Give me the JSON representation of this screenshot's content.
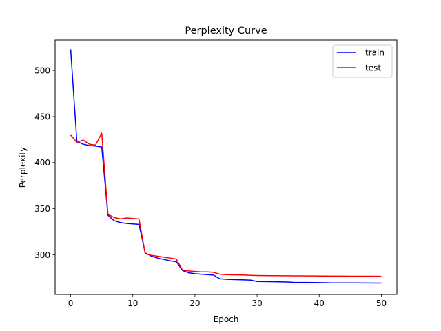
{
  "chart_data": {
    "type": "line",
    "title": "Perplexity Curve",
    "xlabel": "Epoch",
    "ylabel": "Perplexity",
    "xlim": [
      -2.5,
      52.5
    ],
    "ylim": [
      257,
      533
    ],
    "xticks": [
      0,
      10,
      20,
      30,
      40,
      50
    ],
    "yticks": [
      300,
      350,
      400,
      450,
      500
    ],
    "grid": false,
    "legend_position": "top-right",
    "x": [
      0,
      1,
      2,
      3,
      4,
      5,
      6,
      7,
      8,
      9,
      10,
      11,
      12,
      13,
      14,
      15,
      16,
      17,
      18,
      19,
      20,
      21,
      22,
      23,
      24,
      25,
      26,
      27,
      28,
      29,
      30,
      31,
      32,
      33,
      34,
      35,
      36,
      37,
      38,
      39,
      40,
      41,
      42,
      43,
      44,
      45,
      46,
      47,
      48,
      49,
      50
    ],
    "series": [
      {
        "name": "train",
        "color": "#0000ff",
        "values": [
          523,
          423,
          420,
          418.5,
          418,
          417,
          343,
          337,
          335,
          334,
          333.5,
          333,
          302,
          298.5,
          296.5,
          295,
          293.5,
          292.5,
          283,
          280.5,
          279.5,
          279,
          278.5,
          278,
          274,
          273.5,
          273.2,
          273,
          272.8,
          272.5,
          271,
          270.9,
          270.8,
          270.7,
          270.6,
          270.5,
          270,
          270,
          270,
          269.9,
          269.8,
          269.7,
          269.5,
          269.5,
          269.5,
          269.5,
          269.5,
          269.4,
          269.4,
          269.3,
          269.3
        ]
      },
      {
        "name": "test",
        "color": "#ff0000",
        "values": [
          430,
          422,
          424.5,
          420,
          419,
          432,
          344,
          340.5,
          339,
          340,
          339.5,
          339,
          301,
          299.5,
          298.5,
          297.5,
          296.5,
          295.5,
          283.5,
          282.5,
          282,
          281.5,
          281.5,
          281,
          279,
          278.5,
          278.3,
          278.2,
          278,
          277.8,
          277.6,
          277.5,
          277.4,
          277.4,
          277.3,
          277.3,
          277.2,
          277.2,
          277.1,
          277.1,
          277,
          277,
          276.9,
          276.9,
          276.9,
          276.8,
          276.8,
          276.8,
          276.8,
          276.7,
          276.7
        ]
      }
    ]
  }
}
